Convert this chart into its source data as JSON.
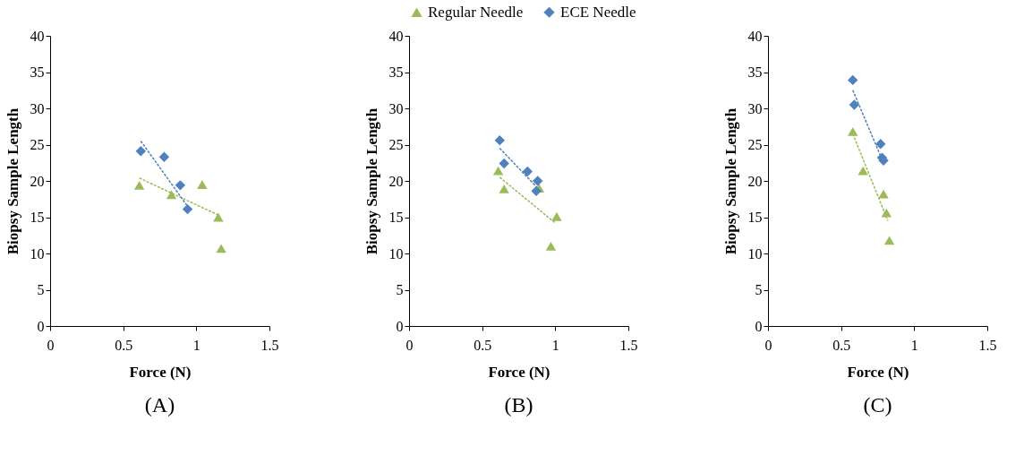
{
  "chart_data": [
    {
      "type": "scatter",
      "xlabel": "Force (N)",
      "ylabel": "Biopsy Sample Length",
      "annotations": [
        "(A)"
      ],
      "xlim": [
        0,
        1.5
      ],
      "ylim": [
        0,
        40
      ],
      "xticks": [
        0,
        0.5,
        1,
        1.5
      ],
      "yticks": [
        0,
        5,
        10,
        15,
        20,
        25,
        30,
        35,
        40
      ],
      "grid": false,
      "legend": false,
      "series": [
        {
          "marker": "triangle",
          "color": "#9bbb59",
          "x": [
            0.61,
            0.83,
            1.04,
            1.15,
            1.17
          ],
          "values": [
            19.4,
            18.1,
            19.5,
            15,
            10.7
          ]
        },
        {
          "marker": "diamond",
          "color": "#4f81bd",
          "x": [
            0.62,
            0.78,
            0.89,
            0.94
          ],
          "values": [
            24.1,
            23.3,
            19.4,
            16.1
          ]
        },
        {
          "type": "line",
          "line_style": "dashed",
          "color": "#9bbb59",
          "x": [
            0.61,
            1.15
          ],
          "values": [
            20.4,
            15.3
          ]
        },
        {
          "type": "line",
          "line_style": "dashed",
          "color": "#4f81bd",
          "x": [
            0.62,
            0.94
          ],
          "values": [
            25.5,
            16.5
          ]
        }
      ]
    },
    {
      "type": "scatter",
      "xlabel": "Force (N)",
      "ylabel": "Biopsy Sample Length",
      "annotations": [
        "(B)"
      ],
      "xlim": [
        0,
        1.5
      ],
      "ylim": [
        0,
        40
      ],
      "xticks": [
        0,
        0.5,
        1,
        1.5
      ],
      "yticks": [
        0,
        5,
        10,
        15,
        20,
        25,
        30,
        35,
        40
      ],
      "grid": false,
      "legend": "top",
      "series": [
        {
          "name": "Regular Needle",
          "marker": "triangle",
          "color": "#9bbb59",
          "x": [
            0.61,
            0.65,
            0.89,
            0.97,
            1.01
          ],
          "values": [
            21.4,
            18.9,
            19,
            11,
            15.1
          ]
        },
        {
          "name": "ECE Needle",
          "marker": "diamond",
          "color": "#4f81bd",
          "x": [
            0.62,
            0.65,
            0.81,
            0.87,
            0.88
          ],
          "values": [
            25.6,
            22.4,
            21.3,
            18.6,
            20
          ]
        },
        {
          "type": "line",
          "line_style": "dashed",
          "color": "#9bbb59",
          "x": [
            0.62,
            1.0
          ],
          "values": [
            20.5,
            14.2
          ]
        },
        {
          "type": "line",
          "line_style": "dashed",
          "color": "#4f81bd",
          "x": [
            0.62,
            0.88
          ],
          "values": [
            24.5,
            19
          ]
        }
      ]
    },
    {
      "type": "scatter",
      "xlabel": "Force (N)",
      "ylabel": "Biopsy Sample Length",
      "annotations": [
        "(C)"
      ],
      "xlim": [
        0,
        1.5
      ],
      "ylim": [
        0,
        40
      ],
      "xticks": [
        0,
        0.5,
        1,
        1.5
      ],
      "yticks": [
        0,
        5,
        10,
        15,
        20,
        25,
        30,
        35,
        40
      ],
      "grid": false,
      "legend": false,
      "series": [
        {
          "marker": "triangle",
          "color": "#9bbb59",
          "x": [
            0.58,
            0.65,
            0.79,
            0.81,
            0.83
          ],
          "values": [
            26.8,
            21.4,
            18.2,
            15.6,
            11.8
          ]
        },
        {
          "marker": "diamond",
          "color": "#4f81bd",
          "x": [
            0.58,
            0.59,
            0.77,
            0.78,
            0.79
          ],
          "values": [
            33.9,
            30.5,
            25.1,
            23.2,
            22.8
          ]
        },
        {
          "type": "line",
          "line_style": "dashed",
          "color": "#9bbb59",
          "x": [
            0.58,
            0.82
          ],
          "values": [
            26.5,
            14.5
          ]
        },
        {
          "type": "line",
          "line_style": "dashed",
          "color": "#4f81bd",
          "x": [
            0.58,
            0.79
          ],
          "values": [
            32.5,
            22.5
          ]
        }
      ]
    }
  ]
}
